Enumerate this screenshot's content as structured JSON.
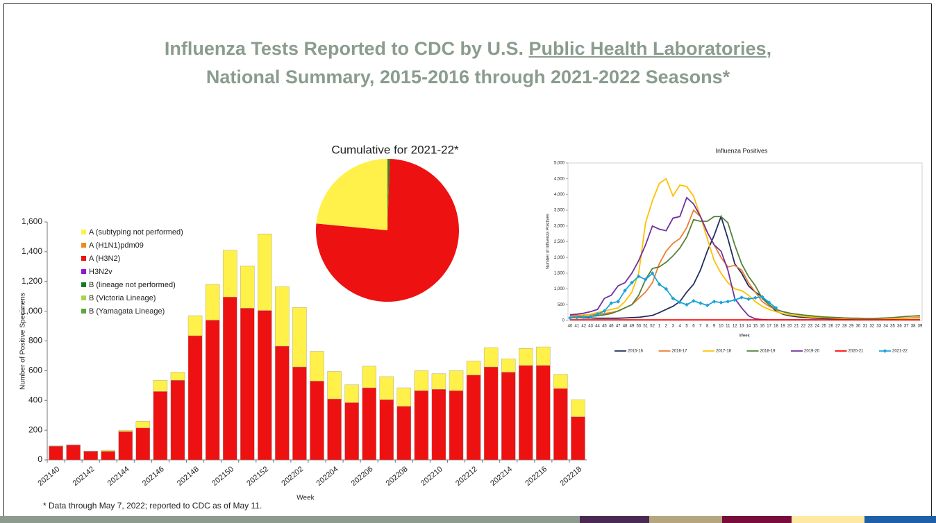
{
  "title": {
    "line1": [
      "Influenza Tests Reported to CDC by U.S. ",
      "Public Health Laboratories",
      ","
    ],
    "line2": "National Summary, 2015-2016 through 2021-2022 Seasons*"
  },
  "footnote": "* Data through May 7, 2022; reported to CDC as of May 11.",
  "chart_data": [
    {
      "type": "bar",
      "stacked": true,
      "x_label": "Week",
      "y_label": "Number of Positive Specimens",
      "categories": [
        "202140",
        null,
        "202142",
        null,
        "202144",
        null,
        "202146",
        null,
        "202148",
        null,
        "202150",
        null,
        "202152",
        null,
        "202202",
        null,
        "202204",
        null,
        "202206",
        null,
        "202208",
        null,
        "202210",
        null,
        "202212",
        null,
        "202214",
        null,
        "202216",
        null,
        "202218"
      ],
      "ylim": [
        0,
        1600
      ],
      "yticks": [
        0,
        200,
        400,
        600,
        800,
        {
          "value": 1000,
          "label": "1,000"
        },
        {
          "value": 1200,
          "label": "1,200"
        },
        {
          "value": 1400,
          "label": "1,400"
        },
        {
          "value": 1600,
          "label": "1,600"
        }
      ],
      "series": [
        {
          "name": "A (subtyping not performed)",
          "color": "#fff04a",
          "values": [
            3,
            2,
            2,
            7,
            10,
            45,
            75,
            55,
            135,
            240,
            315,
            285,
            515,
            400,
            400,
            200,
            185,
            120,
            145,
            155,
            125,
            135,
            105,
            135,
            95,
            130,
            90,
            115,
            125,
            95,
            115
          ]
        },
        {
          "name": "A (H1N1)pdm09",
          "color": "#f08a1c",
          "values": [
            0,
            0,
            0,
            0,
            0,
            0,
            0,
            0,
            0,
            0,
            0,
            0,
            0,
            0,
            0,
            0,
            0,
            0,
            0,
            0,
            0,
            0,
            0,
            0,
            0,
            0,
            0,
            0,
            0,
            0,
            0
          ]
        },
        {
          "name": "A (H3N2)",
          "color": "#ee1111",
          "values": [
            92,
            100,
            58,
            58,
            190,
            215,
            460,
            535,
            835,
            940,
            1095,
            1020,
            1005,
            765,
            625,
            530,
            410,
            385,
            485,
            405,
            360,
            465,
            475,
            465,
            570,
            625,
            590,
            635,
            635,
            480,
            290
          ]
        },
        {
          "name": "H3N2v",
          "color": "#8b1bd6",
          "values": [
            0,
            0,
            0,
            0,
            0,
            0,
            0,
            0,
            0,
            0,
            0,
            0,
            0,
            0,
            0,
            0,
            0,
            0,
            0,
            0,
            0,
            0,
            0,
            0,
            0,
            0,
            0,
            0,
            0,
            0,
            0
          ]
        },
        {
          "name": "B (lineage not performed)",
          "color": "#1a7a2a",
          "values": [
            0,
            0,
            0,
            0,
            0,
            0,
            0,
            0,
            0,
            0,
            0,
            0,
            0,
            0,
            0,
            0,
            0,
            0,
            0,
            0,
            0,
            0,
            0,
            0,
            0,
            0,
            0,
            0,
            0,
            0,
            0
          ]
        },
        {
          "name": "B (Victoria Lineage)",
          "color": "#a8d64a",
          "values": [
            0,
            0,
            0,
            0,
            0,
            0,
            0,
            0,
            0,
            0,
            0,
            0,
            0,
            0,
            0,
            0,
            0,
            0,
            0,
            0,
            0,
            0,
            0,
            0,
            0,
            0,
            0,
            0,
            0,
            0,
            0
          ]
        },
        {
          "name": "B (Yamagata Lineage)",
          "color": "#5aa83a",
          "values": [
            0,
            0,
            0,
            0,
            0,
            0,
            0,
            0,
            0,
            0,
            0,
            0,
            0,
            0,
            0,
            0,
            0,
            0,
            0,
            0,
            0,
            0,
            0,
            0,
            0,
            0,
            0,
            0,
            0,
            0,
            0
          ]
        }
      ]
    },
    {
      "type": "pie",
      "title": "Cumulative for 2021-22*",
      "values": [
        0.5,
        76,
        23.5
      ],
      "colors": [
        "#2e8b2e",
        "#ee1111",
        "#fff04a"
      ]
    },
    {
      "type": "line",
      "title": "Influenza Positives",
      "x_label": "Week",
      "y_label": "Number of Influenza Positives",
      "categories": [
        "40",
        "41",
        "42",
        "43",
        "44",
        "45",
        "46",
        "47",
        "48",
        "49",
        "50",
        "51",
        "52",
        "1",
        "2",
        "3",
        "4",
        "5",
        "6",
        "7",
        "8",
        "9",
        "10",
        "11",
        "12",
        "13",
        "14",
        "15",
        "16",
        "17",
        "18",
        "19",
        "20",
        "21",
        "22",
        "23",
        "24",
        "25",
        "26",
        "27",
        "28",
        "29",
        "30",
        "31",
        "32",
        "33",
        "34",
        "35",
        "36",
        "37",
        "38",
        "39"
      ],
      "ylim": [
        0,
        5000
      ],
      "yticks": [
        0,
        500,
        {
          "value": 1000,
          "label": "1,000"
        },
        {
          "value": 1500,
          "label": "1,500"
        },
        {
          "value": 2000,
          "label": "2,000"
        },
        {
          "value": 2500,
          "label": "2,500"
        },
        {
          "value": 3000,
          "label": "3,000"
        },
        {
          "value": 3500,
          "label": "3,500"
        },
        {
          "value": 4000,
          "label": "4,000"
        },
        {
          "value": 4500,
          "label": "4,500"
        },
        {
          "value": 5000,
          "label": "5,000"
        }
      ],
      "series": [
        {
          "name": "2015-16",
          "color": "#1f2d5c",
          "values": [
            100,
            90,
            80,
            80,
            70,
            70,
            70,
            70,
            80,
            90,
            100,
            130,
            160,
            250,
            350,
            450,
            600,
            900,
            1150,
            1600,
            2200,
            2700,
            3300,
            2600,
            1800,
            1500,
            1100,
            900,
            750,
            500,
            300,
            200,
            150,
            120,
            100,
            80,
            70,
            60,
            50,
            50,
            50,
            40,
            40,
            40,
            40,
            40,
            40,
            50,
            60,
            70,
            80,
            80
          ]
        },
        {
          "name": "2016-17",
          "color": "#ed7d31",
          "values": [
            150,
            160,
            170,
            180,
            200,
            220,
            250,
            300,
            400,
            500,
            700,
            900,
            1200,
            1800,
            2200,
            2450,
            2600,
            2950,
            3500,
            3300,
            2800,
            2400,
            2000,
            1700,
            1750,
            1600,
            1200,
            900,
            600,
            450,
            350,
            280,
            230,
            200,
            170,
            150,
            130,
            110,
            100,
            90,
            80,
            70,
            70,
            60,
            60,
            60,
            60,
            60,
            70,
            80,
            90,
            100
          ]
        },
        {
          "name": "2017-18",
          "color": "#ffc000",
          "values": [
            100,
            120,
            150,
            200,
            250,
            300,
            350,
            400,
            600,
            900,
            1500,
            3100,
            3800,
            4350,
            4500,
            3950,
            4300,
            4250,
            3950,
            3300,
            2600,
            1900,
            1500,
            1200,
            1000,
            950,
            800,
            600,
            450,
            350,
            280,
            220,
            180,
            150,
            130,
            110,
            100,
            90,
            80,
            70,
            60,
            60,
            50,
            50,
            50,
            50,
            50,
            60,
            60,
            70,
            80,
            80
          ]
        },
        {
          "name": "2018-19",
          "color": "#548235",
          "values": [
            100,
            110,
            120,
            130,
            150,
            180,
            220,
            300,
            400,
            500,
            800,
            1300,
            1650,
            1700,
            1850,
            2050,
            2300,
            2650,
            3200,
            3150,
            3150,
            3300,
            3300,
            3100,
            2400,
            1800,
            1400,
            1100,
            700,
            500,
            350,
            280,
            230,
            200,
            170,
            150,
            130,
            110,
            100,
            90,
            80,
            70,
            70,
            60,
            60,
            70,
            80,
            90,
            110,
            130,
            140,
            150
          ]
        },
        {
          "name": "2019-20",
          "color": "#7030a0",
          "values": [
            180,
            200,
            230,
            280,
            350,
            700,
            800,
            1100,
            1200,
            1500,
            1900,
            2400,
            3000,
            2900,
            2850,
            3250,
            3300,
            3900,
            3700,
            3300,
            2800,
            2400,
            2200,
            1600,
            700,
            400,
            150,
            50,
            30,
            20,
            20,
            20,
            20,
            20,
            20,
            20,
            20,
            20,
            20,
            20,
            20,
            20,
            20,
            20,
            20,
            20,
            20,
            20,
            20,
            20,
            20,
            20
          ]
        },
        {
          "name": "2020-21",
          "color": "#ff0000",
          "values": [
            20,
            20,
            20,
            20,
            20,
            20,
            20,
            20,
            20,
            20,
            20,
            20,
            20,
            20,
            20,
            20,
            20,
            20,
            20,
            20,
            20,
            20,
            20,
            20,
            20,
            20,
            20,
            20,
            20,
            20,
            20,
            20,
            20,
            20,
            20,
            20,
            20,
            20,
            20,
            20,
            20,
            20,
            20,
            20,
            20,
            20,
            20,
            20,
            20,
            20,
            20,
            20
          ]
        },
        {
          "name": "2021-22",
          "color": "#1aa3d9",
          "marker": "diamond",
          "values": [
            80,
            90,
            100,
            120,
            200,
            300,
            550,
            600,
            950,
            1200,
            1400,
            1300,
            1500,
            1150,
            1000,
            700,
            580,
            500,
            620,
            550,
            480,
            600,
            570,
            600,
            650,
            730,
            680,
            720,
            750,
            570,
            400,
            null,
            null,
            null,
            null,
            null,
            null,
            null,
            null,
            null,
            null,
            null,
            null,
            null,
            null,
            null,
            null,
            null,
            null,
            null,
            null,
            null
          ]
        }
      ]
    }
  ]
}
